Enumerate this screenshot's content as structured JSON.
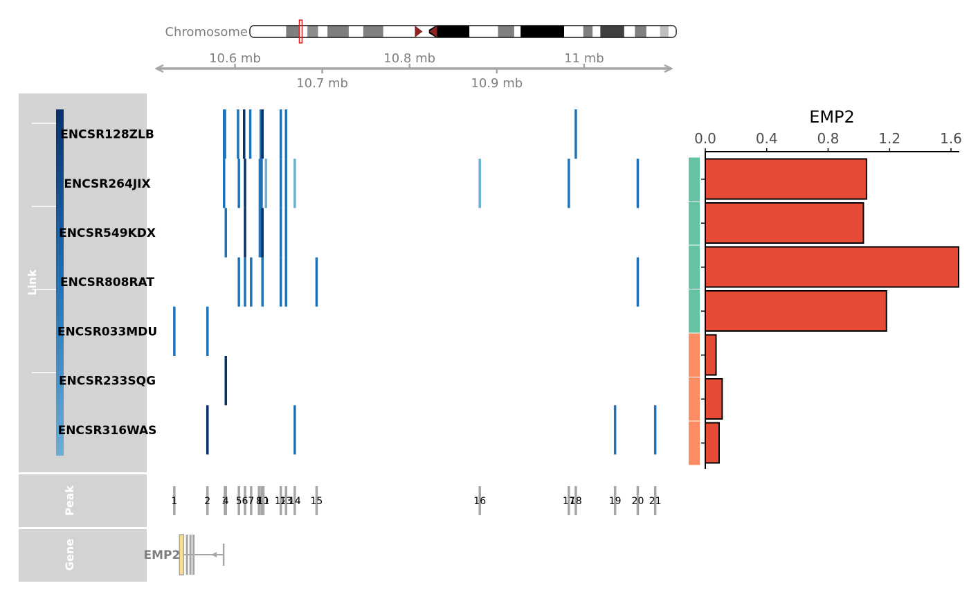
{
  "colors": {
    "panel_bg": "#d3d3d3",
    "panel_text": "#ffffff",
    "link_light": "#6baed6",
    "link_mid": "#2171b5",
    "link_dark": "#08306b",
    "peak": "#a6a6a6",
    "axis_grey": "#a6a6a6",
    "axis_text": "#7f7f7f",
    "bar_fill": "#e64b35",
    "group_teal": "#66c2a5",
    "group_orange": "#fc8d62",
    "gene_exon": "#fddc8d",
    "centromere": "#8b2323",
    "highlight": "#e41a1c"
  },
  "chromosome": {
    "label": "Chromosome",
    "highlight_start": 0.116,
    "highlight_end": 0.122,
    "centromere_pos": 0.405,
    "bands": [
      {
        "s": 0.0,
        "e": 0.085,
        "c": "#ffffff"
      },
      {
        "s": 0.085,
        "e": 0.116,
        "c": "#7f7f7f"
      },
      {
        "s": 0.116,
        "e": 0.135,
        "c": "#ffffff"
      },
      {
        "s": 0.135,
        "e": 0.16,
        "c": "#8c8c8c"
      },
      {
        "s": 0.16,
        "e": 0.182,
        "c": "#ffffff"
      },
      {
        "s": 0.182,
        "e": 0.232,
        "c": "#7f7f7f"
      },
      {
        "s": 0.232,
        "e": 0.266,
        "c": "#ffffff"
      },
      {
        "s": 0.266,
        "e": 0.313,
        "c": "#808080"
      },
      {
        "s": 0.313,
        "e": 0.39,
        "c": "#ffffff"
      },
      {
        "s": 0.42,
        "e": 0.515,
        "c": "#000000"
      },
      {
        "s": 0.515,
        "e": 0.582,
        "c": "#ffffff"
      },
      {
        "s": 0.582,
        "e": 0.62,
        "c": "#808080"
      },
      {
        "s": 0.62,
        "e": 0.635,
        "c": "#ffffff"
      },
      {
        "s": 0.635,
        "e": 0.737,
        "c": "#000000"
      },
      {
        "s": 0.737,
        "e": 0.782,
        "c": "#ffffff"
      },
      {
        "s": 0.782,
        "e": 0.804,
        "c": "#808080"
      },
      {
        "s": 0.804,
        "e": 0.822,
        "c": "#ffffff"
      },
      {
        "s": 0.822,
        "e": 0.878,
        "c": "#404040"
      },
      {
        "s": 0.878,
        "e": 0.903,
        "c": "#ffffff"
      },
      {
        "s": 0.903,
        "e": 0.93,
        "c": "#808080"
      },
      {
        "s": 0.93,
        "e": 0.962,
        "c": "#ffffff"
      },
      {
        "s": 0.962,
        "e": 0.982,
        "c": "#bfbfbf"
      },
      {
        "s": 0.982,
        "e": 1.0,
        "c": "#ffffff"
      }
    ]
  },
  "chart_data": {
    "type": "genome_track",
    "x_range_mb": [
      10.51,
      11.1
    ],
    "x_ticks_top": [
      {
        "value": 10.6,
        "label": "10.6 mb"
      },
      {
        "value": 10.8,
        "label": "10.8 mb"
      },
      {
        "value": 11.0,
        "label": "11 mb"
      }
    ],
    "x_ticks_bottom": [
      {
        "value": 10.7,
        "label": "10.7 mb"
      },
      {
        "value": 10.9,
        "label": "10.9 mb"
      }
    ],
    "panels": {
      "link": "Link",
      "peak": "Peak",
      "gene": "Gene"
    },
    "samples": [
      {
        "name": "ENCSR128ZLB",
        "group": 1
      },
      {
        "name": "ENCSR264JIX",
        "group": 1
      },
      {
        "name": "ENCSR549KDX",
        "group": 1
      },
      {
        "name": "ENCSR808RAT",
        "group": 1
      },
      {
        "name": "ENCSR033MDU",
        "group": 2
      },
      {
        "name": "ENCSR233SQG",
        "group": 2
      },
      {
        "name": "ENCSR316WAS",
        "group": 2
      }
    ],
    "peaks": [
      {
        "id": "1",
        "pos": 10.5305
      },
      {
        "id": "2",
        "pos": 10.5685
      },
      {
        "id": "3",
        "pos": 10.5885
      },
      {
        "id": "4",
        "pos": 10.5895
      },
      {
        "id": "5",
        "pos": 10.6045
      },
      {
        "id": "6",
        "pos": 10.6115
      },
      {
        "id": "7",
        "pos": 10.6185
      },
      {
        "id": "8",
        "pos": 10.6275
      },
      {
        "id": "9",
        "pos": 10.6305
      },
      {
        "id": "10",
        "pos": 10.6315
      },
      {
        "id": "11",
        "pos": 10.6325
      },
      {
        "id": "12",
        "pos": 10.6525
      },
      {
        "id": "13",
        "pos": 10.6585
      },
      {
        "id": "14",
        "pos": 10.6685
      },
      {
        "id": "15",
        "pos": 10.6935
      },
      {
        "id": "16",
        "pos": 10.8805
      },
      {
        "id": "17",
        "pos": 10.9825
      },
      {
        "id": "18",
        "pos": 10.9905
      },
      {
        "id": "19",
        "pos": 11.0355
      },
      {
        "id": "20",
        "pos": 11.0615
      },
      {
        "id": "21",
        "pos": 11.0815
      }
    ],
    "links": [
      {
        "row": 0,
        "pos": [
          10.5875,
          10.5885,
          10.6035,
          10.6105,
          10.6175,
          10.6295,
          10.6315,
          10.6525,
          10.6585,
          10.9905
        ],
        "shade": [
          1,
          1,
          1,
          2,
          1,
          1,
          2,
          1,
          1,
          1
        ]
      },
      {
        "row": 1,
        "pos": [
          10.5875,
          10.6045,
          10.6115,
          10.6285,
          10.6305,
          10.6355,
          10.6525,
          10.6585,
          10.6685,
          10.8805,
          10.9825,
          11.0615
        ],
        "shade": [
          1,
          1,
          2,
          1,
          1,
          0,
          1,
          1,
          0,
          0,
          1,
          1
        ]
      },
      {
        "row": 2,
        "pos": [
          10.5895,
          10.6115,
          10.6285,
          10.6305,
          10.6315,
          10.6525,
          10.6585
        ],
        "shade": [
          1,
          2,
          1,
          1,
          2,
          1,
          1
        ]
      },
      {
        "row": 3,
        "pos": [
          10.6045,
          10.6115,
          10.6185,
          10.6315,
          10.6525,
          10.6585,
          10.6935,
          11.0615
        ],
        "shade": [
          1,
          1,
          1,
          1,
          1,
          1,
          1,
          1
        ]
      },
      {
        "row": 4,
        "pos": [
          10.5305,
          10.5685
        ],
        "shade": [
          1,
          1
        ]
      },
      {
        "row": 5,
        "pos": [
          10.5895
        ],
        "shade": [
          2
        ]
      },
      {
        "row": 6,
        "pos": [
          10.5685,
          10.6685,
          11.0355,
          11.0815
        ],
        "shade": [
          2,
          1,
          1,
          1
        ]
      }
    ],
    "gene": {
      "name": "EMP2",
      "start": 10.538,
      "end": 10.587,
      "exons": [
        10.539,
        10.545,
        10.549,
        10.5525
      ],
      "strand": "-"
    },
    "bar_chart": {
      "title": "EMP2",
      "xlim": [
        0,
        1.65
      ],
      "ticks": [
        0.0,
        0.4,
        0.8,
        1.2,
        1.6
      ],
      "tick_labels": [
        "0.0",
        "0.4",
        "0.8",
        "1.2",
        "1.6"
      ],
      "values": [
        1.05,
        1.03,
        1.65,
        1.18,
        0.07,
        0.11,
        0.09
      ]
    }
  }
}
